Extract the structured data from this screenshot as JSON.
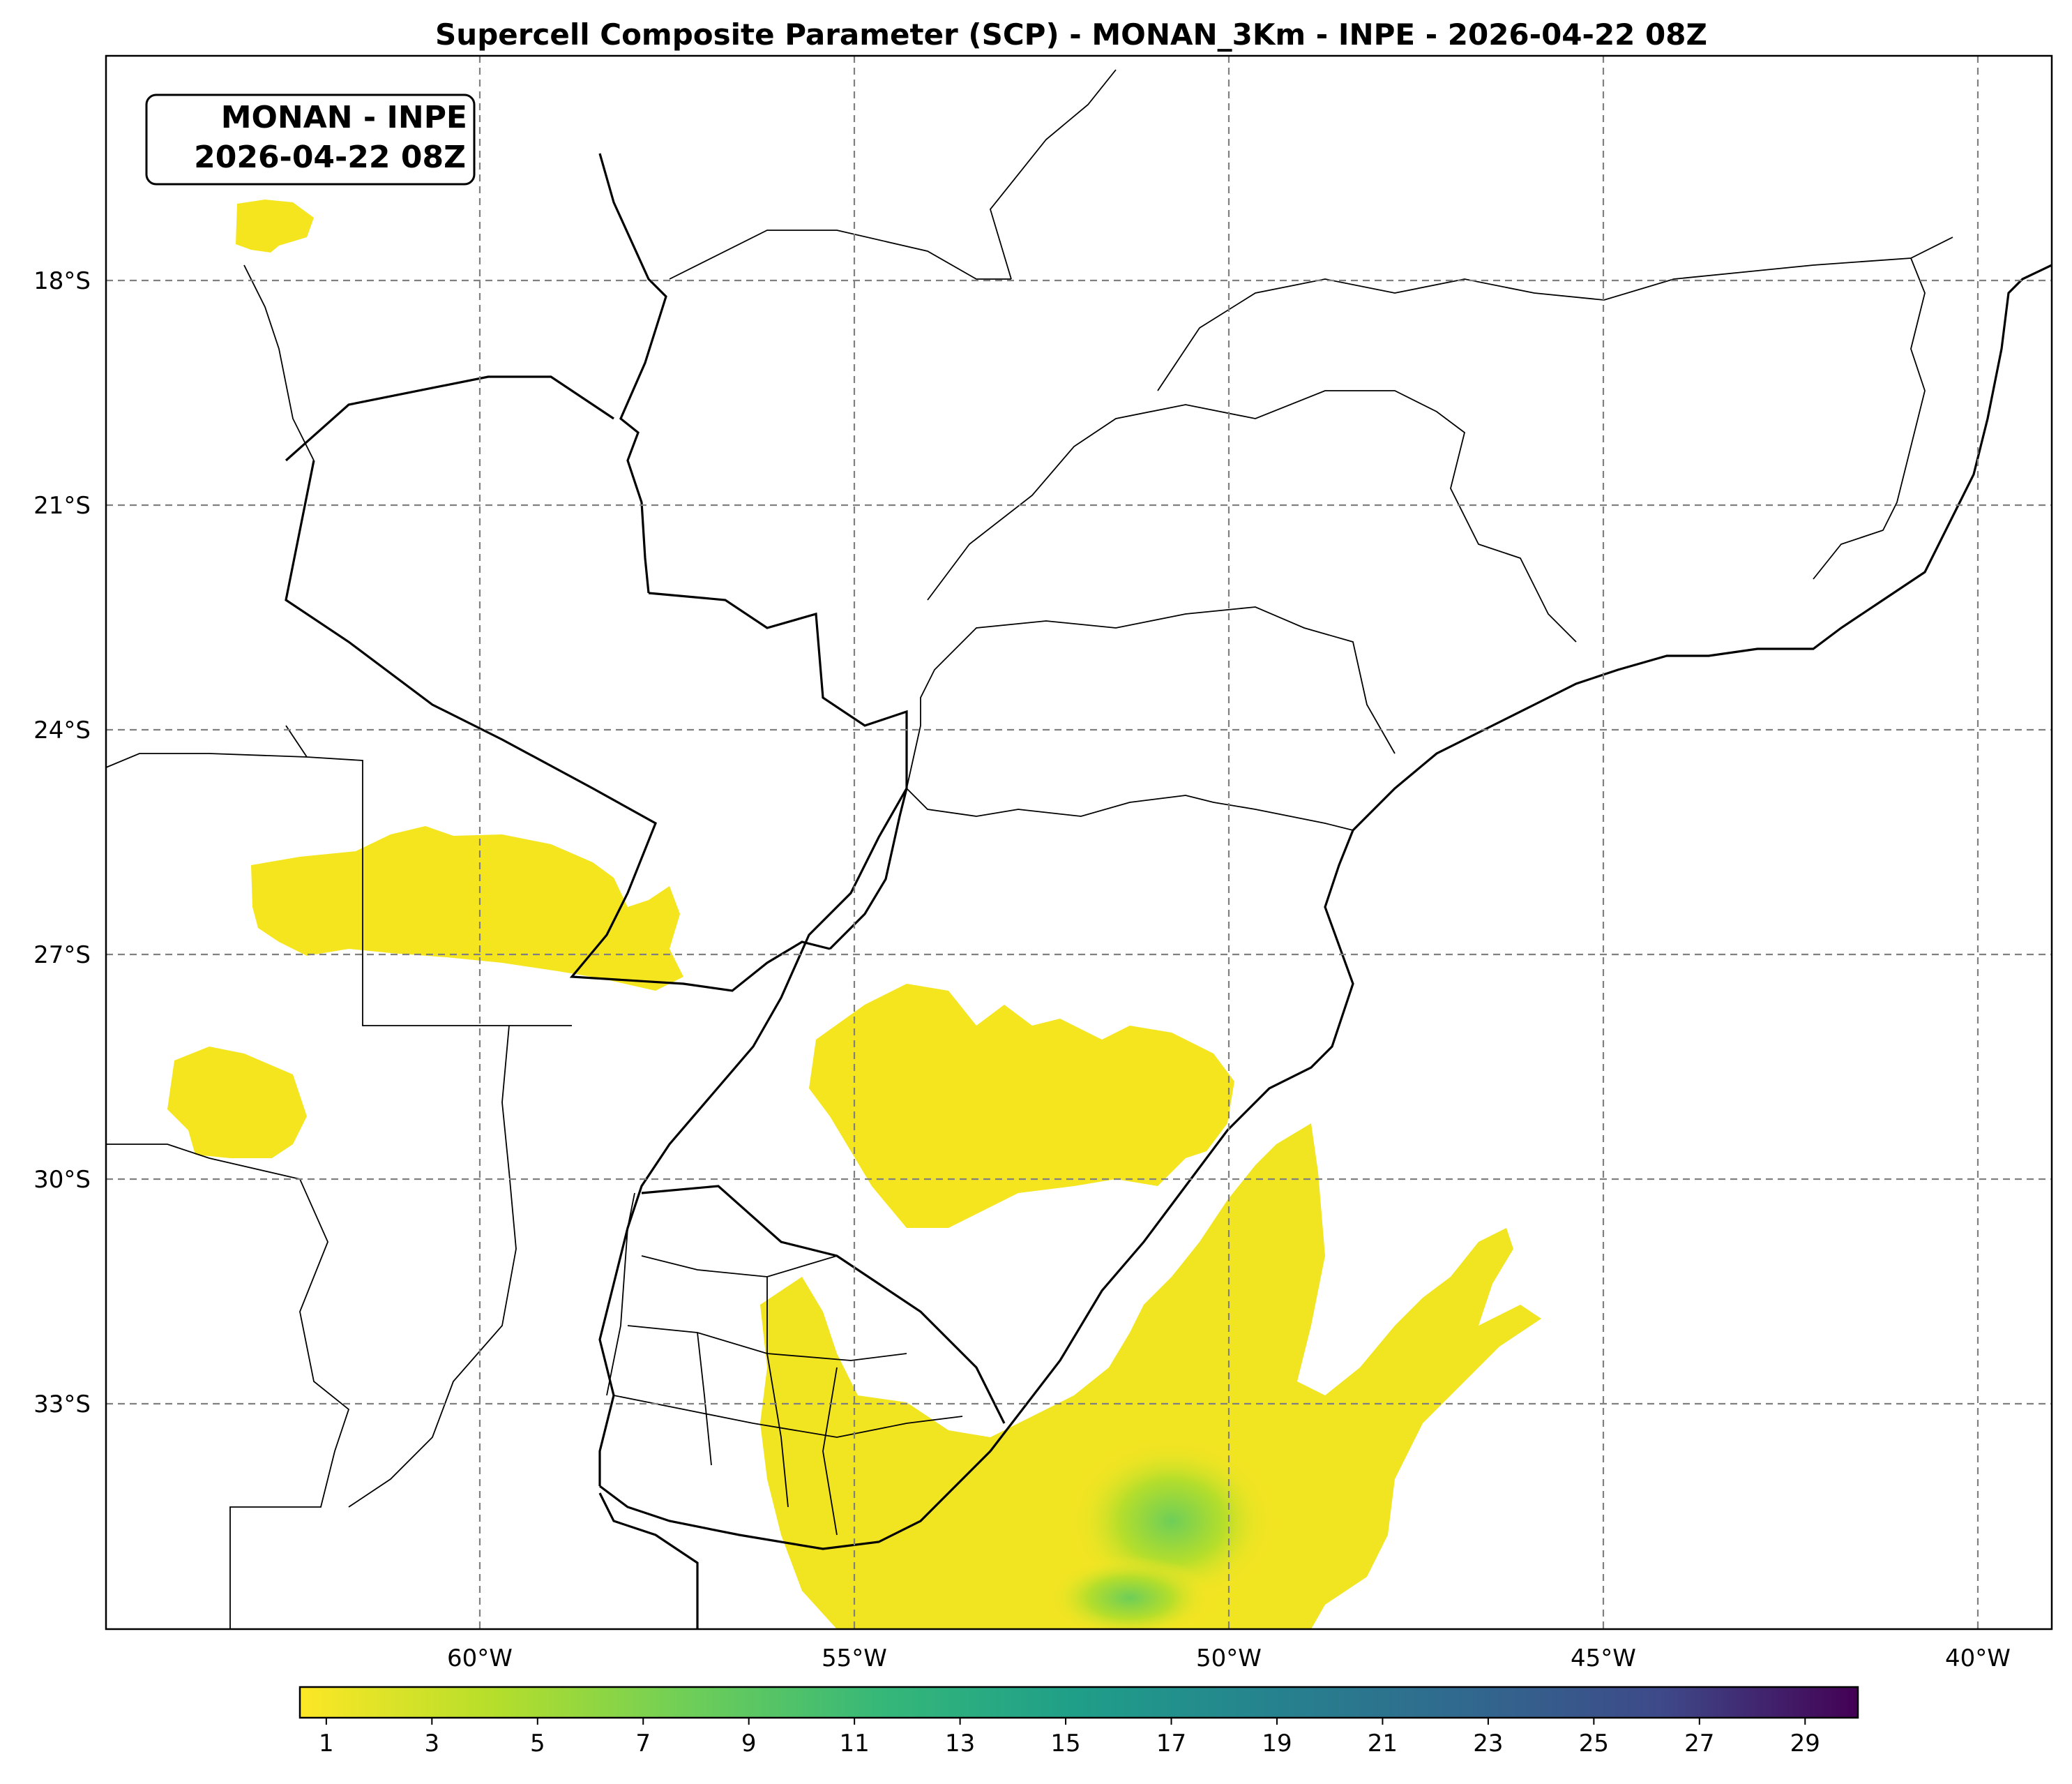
{
  "title": "Supercell Composite Parameter (SCP) - MONAN_3Km - INPE - 2026-04-22 08Z",
  "info_box": {
    "line1": "MONAN - INPE",
    "line2": "2026-04-22 08Z"
  },
  "map": {
    "lon_range": [
      -65,
      -39
    ],
    "lat_range": [
      -36,
      -15
    ],
    "lat_ticks": [
      {
        "value": -18,
        "label": "18°S"
      },
      {
        "value": -21,
        "label": "21°S"
      },
      {
        "value": -24,
        "label": "24°S"
      },
      {
        "value": -27,
        "label": "27°S"
      },
      {
        "value": -30,
        "label": "30°S"
      },
      {
        "value": -33,
        "label": "33°S"
      }
    ],
    "lon_ticks": [
      {
        "value": -60,
        "label": "60°W"
      },
      {
        "value": -55,
        "label": "55°W"
      },
      {
        "value": -50,
        "label": "50°W"
      },
      {
        "value": -45,
        "label": "45°W"
      },
      {
        "value": -40,
        "label": "40°W"
      }
    ],
    "gridlines": true
  },
  "colorbar": {
    "colormap": "viridis_r",
    "range": [
      0.5,
      30
    ],
    "ticks": [
      "1",
      "3",
      "5",
      "7",
      "9",
      "11",
      "13",
      "15",
      "17",
      "19",
      "21",
      "23",
      "25",
      "27",
      "29"
    ],
    "low_color": "#fde725",
    "high_color": "#440154"
  }
}
